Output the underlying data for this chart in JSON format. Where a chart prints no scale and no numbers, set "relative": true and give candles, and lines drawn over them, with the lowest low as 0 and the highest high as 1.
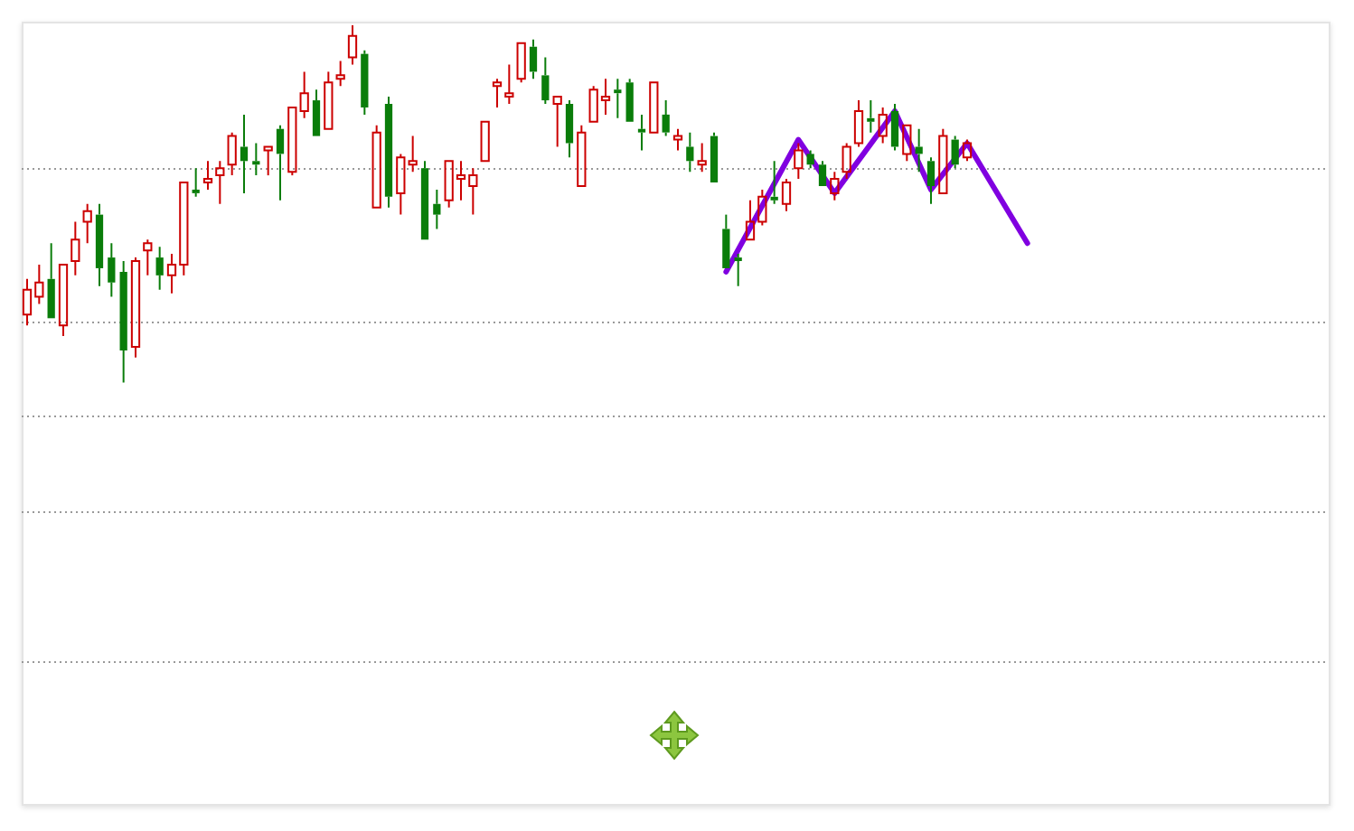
{
  "chart_data": {
    "type": "candlestick",
    "relative": true,
    "categories": [
      null,
      null,
      null,
      null,
      null,
      null,
      null,
      null,
      null,
      null,
      null,
      null,
      null,
      null,
      null,
      null,
      null,
      null,
      null,
      null,
      null,
      null,
      null,
      null,
      null,
      null,
      null,
      null,
      null,
      null,
      null,
      null,
      null,
      null,
      null,
      null,
      null,
      null,
      null,
      null,
      null,
      null,
      null,
      null,
      null,
      null,
      null,
      null,
      null,
      null,
      null,
      null,
      null,
      null,
      null,
      null,
      null,
      null,
      null,
      null,
      null,
      null,
      null,
      null,
      null,
      null,
      null,
      null,
      null,
      null,
      null,
      null,
      null,
      null,
      null,
      null,
      null,
      null,
      null,
      null,
      null,
      null,
      null,
      null,
      null,
      null,
      null,
      null,
      null,
      null,
      null,
      null,
      null,
      null,
      null,
      null,
      null,
      null,
      null,
      null,
      null,
      null,
      null,
      null,
      null,
      null,
      null,
      null,
      null
    ],
    "ohlc": [
      [
        0.19,
        0.29,
        0.16,
        0.26
      ],
      [
        0.24,
        0.33,
        0.22,
        0.28
      ],
      [
        0.29,
        0.39,
        0.18,
        0.18
      ],
      [
        0.16,
        0.33,
        0.13,
        0.33
      ],
      [
        0.34,
        0.45,
        0.3,
        0.4
      ],
      [
        0.45,
        0.5,
        0.39,
        0.48
      ],
      [
        0.47,
        0.5,
        0.27,
        0.32
      ],
      [
        0.35,
        0.39,
        0.24,
        0.28
      ],
      [
        0.31,
        0.34,
        0,
        0.09
      ],
      [
        0.1,
        0.35,
        0.07,
        0.34
      ],
      [
        0.37,
        0.4,
        0.3,
        0.39
      ],
      [
        0.35,
        0.38,
        0.26,
        0.3
      ],
      [
        0.3,
        0.36,
        0.25,
        0.33
      ],
      [
        0.33,
        0.56,
        0.3,
        0.56
      ],
      [
        0.54,
        0.6,
        0.52,
        0.53
      ],
      [
        0.56,
        0.62,
        0.54,
        0.57
      ],
      [
        0.58,
        0.62,
        0.5,
        0.6
      ],
      [
        0.61,
        0.7,
        0.58,
        0.69
      ],
      [
        0.66,
        0.75,
        0.53,
        0.62
      ],
      [
        0.62,
        0.67,
        0.58,
        0.61
      ],
      [
        0.65,
        0.66,
        0.58,
        0.66
      ],
      [
        0.71,
        0.72,
        0.51,
        0.64
      ],
      [
        0.59,
        0.77,
        0.58,
        0.77
      ],
      [
        0.76,
        0.87,
        0.74,
        0.81
      ],
      [
        0.79,
        0.82,
        0.69,
        0.69
      ],
      [
        0.71,
        0.87,
        0.71,
        0.84
      ],
      [
        0.85,
        0.9,
        0.83,
        0.86
      ],
      [
        0.91,
        1,
        0.89,
        0.97
      ],
      [
        0.92,
        0.93,
        0.75,
        0.77
      ],
      [
        0.49,
        0.72,
        0.49,
        0.7
      ],
      [
        0.78,
        0.8,
        0.49,
        0.52
      ],
      [
        0.53,
        0.64,
        0.47,
        0.63
      ],
      [
        0.61,
        0.69,
        0.59,
        0.62
      ],
      [
        0.6,
        0.62,
        0.4,
        0.4
      ],
      [
        0.5,
        0.54,
        0.43,
        0.47
      ],
      [
        0.51,
        0.62,
        0.49,
        0.62
      ],
      [
        0.57,
        0.62,
        0.51,
        0.58
      ],
      [
        0.55,
        0.6,
        0.47,
        0.58
      ],
      [
        0.62,
        0.73,
        0.62,
        0.73
      ],
      [
        0.83,
        0.85,
        0.77,
        0.84
      ],
      [
        0.8,
        0.89,
        0.78,
        0.81
      ],
      [
        0.85,
        0.95,
        0.84,
        0.95
      ],
      [
        0.94,
        0.96,
        0.85,
        0.87
      ],
      [
        0.86,
        0.91,
        0.78,
        0.79
      ],
      [
        0.78,
        0.8,
        0.66,
        0.8
      ],
      [
        0.78,
        0.79,
        0.63,
        0.67
      ],
      [
        0.55,
        0.72,
        0.55,
        0.7
      ],
      [
        0.73,
        0.83,
        0.73,
        0.82
      ],
      [
        0.79,
        0.85,
        0.75,
        0.8
      ],
      [
        0.82,
        0.85,
        0.74,
        0.81
      ],
      [
        0.84,
        0.85,
        0.73,
        0.73
      ],
      [
        0.71,
        0.75,
        0.65,
        0.7
      ],
      [
        0.7,
        0.84,
        0.7,
        0.84
      ],
      [
        0.75,
        0.79,
        0.69,
        0.7
      ],
      [
        0.68,
        0.71,
        0.65,
        0.69
      ],
      [
        0.66,
        0.7,
        0.59,
        0.62
      ],
      [
        0.61,
        0.67,
        0.59,
        0.62
      ],
      [
        0.69,
        0.7,
        0.56,
        0.56
      ],
      [
        0.43,
        0.47,
        0.32,
        0.32
      ],
      [
        0.35,
        0.36,
        0.27,
        0.34
      ],
      [
        0.4,
        0.51,
        0.4,
        0.45
      ],
      [
        0.45,
        0.54,
        0.44,
        0.52
      ],
      [
        0.52,
        0.62,
        0.5,
        0.51
      ],
      [
        0.5,
        0.57,
        0.48,
        0.56
      ],
      [
        0.6,
        0.67,
        0.57,
        0.65
      ],
      [
        0.64,
        0.65,
        0.6,
        0.61
      ],
      [
        0.61,
        0.62,
        0.55,
        0.55
      ],
      [
        0.53,
        0.59,
        0.51,
        0.57
      ],
      [
        0.59,
        0.67,
        0.57,
        0.66
      ],
      [
        0.67,
        0.79,
        0.66,
        0.76
      ],
      [
        0.74,
        0.79,
        0.7,
        0.73
      ],
      [
        0.69,
        0.77,
        0.67,
        0.75
      ],
      [
        0.76,
        0.78,
        0.65,
        0.66
      ],
      [
        0.64,
        0.72,
        0.62,
        0.72
      ],
      [
        0.66,
        0.71,
        0.59,
        0.64
      ],
      [
        0.62,
        0.63,
        0.5,
        0.55
      ],
      [
        0.53,
        0.71,
        0.53,
        0.69
      ],
      [
        0.68,
        0.69,
        0.6,
        0.61
      ],
      [
        0.63,
        0.68,
        0.62,
        0.67
      ],
      null,
      null,
      null,
      null,
      null,
      null,
      null,
      null,
      null,
      null,
      null,
      null,
      null,
      null,
      null,
      null,
      null,
      null,
      null,
      null,
      null,
      null,
      null,
      null,
      null,
      null,
      null,
      null,
      null,
      null
    ],
    "colors": [
      "#cc0000",
      "#cc0000",
      "#0a7d0a",
      "#cc0000",
      "#cc0000",
      "#cc0000",
      "#0a7d0a",
      "#0a7d0a",
      "#0a7d0a",
      "#cc0000",
      "#cc0000",
      "#0a7d0a",
      "#cc0000",
      "#cc0000",
      "#0a7d0a",
      "#cc0000",
      "#cc0000",
      "#cc0000",
      "#0a7d0a",
      "#0a7d0a",
      "#cc0000",
      "#0a7d0a",
      "#cc0000",
      "#cc0000",
      "#0a7d0a",
      "#cc0000",
      "#cc0000",
      "#cc0000",
      "#0a7d0a",
      "#cc0000",
      "#0a7d0a",
      "#cc0000",
      "#cc0000",
      "#0a7d0a",
      "#0a7d0a",
      "#cc0000",
      "#cc0000",
      "#cc0000",
      "#cc0000",
      "#cc0000",
      "#cc0000",
      "#cc0000",
      "#0a7d0a",
      "#0a7d0a",
      "#cc0000",
      "#0a7d0a",
      "#cc0000",
      "#cc0000",
      "#cc0000",
      "#0a7d0a",
      "#0a7d0a",
      "#0a7d0a",
      "#cc0000",
      "#0a7d0a",
      "#cc0000",
      "#0a7d0a",
      "#cc0000",
      "#0a7d0a",
      "#0a7d0a",
      "#0a7d0a",
      "#cc0000",
      "#cc0000",
      "#0a7d0a",
      "#cc0000",
      "#cc0000",
      "#0a7d0a",
      "#0a7d0a",
      "#cc0000",
      "#cc0000",
      "#cc0000",
      "#0a7d0a",
      "#cc0000",
      "#0a7d0a",
      "#cc0000",
      "#0a7d0a",
      "#0a7d0a",
      "#cc0000",
      "#0a7d0a",
      "#cc0000",
      null,
      null,
      null,
      null,
      null,
      null,
      null,
      null,
      null,
      null,
      null,
      null,
      null,
      null,
      null,
      null,
      null,
      null,
      null,
      null,
      null,
      null,
      null,
      null,
      null,
      null,
      null,
      null,
      null,
      null
    ],
    "series": [
      {
        "type": "line",
        "color": "#8000e0",
        "values": [
          null,
          null,
          null,
          null,
          null,
          null,
          null,
          null,
          null,
          null,
          null,
          null,
          null,
          null,
          null,
          null,
          null,
          null,
          null,
          null,
          null,
          null,
          null,
          null,
          null,
          null,
          null,
          null,
          null,
          null,
          null,
          null,
          null,
          null,
          null,
          null,
          null,
          null,
          null,
          null,
          null,
          null,
          null,
          null,
          null,
          null,
          null,
          null,
          null,
          null,
          null,
          null,
          null,
          null,
          null,
          null,
          null,
          null,
          0.31,
          null,
          null,
          null,
          null,
          null,
          0.68,
          null,
          null,
          0.53,
          null,
          null,
          null,
          null,
          0.76,
          null,
          null,
          0.54,
          null,
          null,
          0.67,
          null,
          null,
          null,
          null,
          0.39,
          null,
          null,
          null,
          null,
          null,
          null,
          null,
          null,
          null,
          null,
          null,
          null,
          null,
          null,
          null,
          null,
          null,
          null,
          null,
          null,
          null,
          null,
          null,
          null,
          null
        ]
      }
    ],
    "ref_lines": [
      {
        "axis": "y",
        "value": 0.6,
        "color": "#999999",
        "line_style": "dotted"
      },
      {
        "axis": "y",
        "value": 0.17,
        "color": "#999999",
        "line_style": "dotted"
      },
      {
        "axis": "y",
        "value": -0.09,
        "color": "#999999",
        "line_style": "dotted"
      },
      {
        "axis": "y",
        "value": -0.36,
        "color": "#999999",
        "line_style": "dotted"
      },
      {
        "axis": "y",
        "value": -0.78,
        "color": "#999999",
        "line_style": "dotted"
      }
    ]
  }
}
